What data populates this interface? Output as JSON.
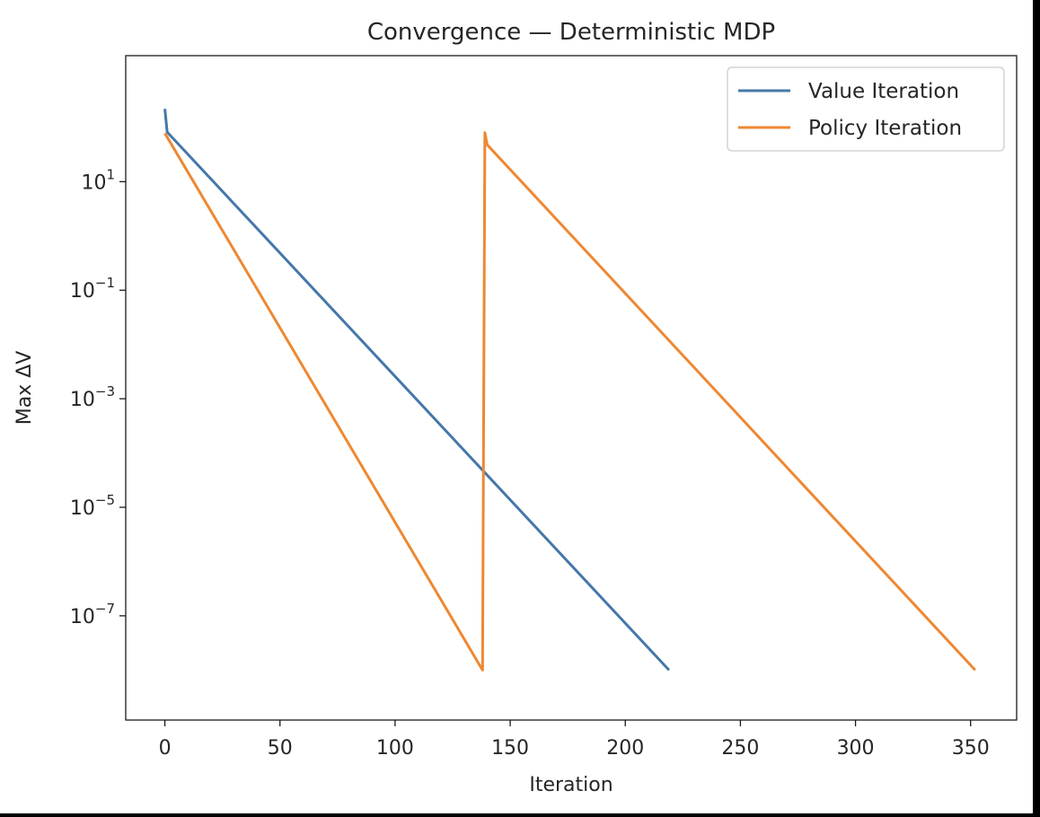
{
  "chart_data": {
    "type": "line",
    "title": "Convergence — Deterministic MDP",
    "xlabel": "Iteration",
    "ylabel": "Max ΔV",
    "xlim": [
      -17,
      370
    ],
    "ylim": [
      1.2e-09,
      2100.0
    ],
    "yscale": "log",
    "grid": false,
    "legend_position": "top-right",
    "x_ticks": [
      0,
      50,
      100,
      150,
      200,
      250,
      300,
      350
    ],
    "y_ticks": [
      {
        "value": 10,
        "base": "10",
        "exp": "1"
      },
      {
        "value": 0.1,
        "base": "10",
        "exp": "−1"
      },
      {
        "value": 0.001,
        "base": "10",
        "exp": "−3"
      },
      {
        "value": 1e-05,
        "base": "10",
        "exp": "−5"
      },
      {
        "value": 1e-07,
        "base": "10",
        "exp": "−7"
      }
    ],
    "series": [
      {
        "name": "Value Iteration",
        "color": "#4477aa",
        "points": [
          [
            0,
            220
          ],
          [
            1,
            82
          ],
          [
            219,
            1e-08
          ]
        ]
      },
      {
        "name": "Policy Iteration",
        "color": "#ee8833",
        "points": [
          [
            0,
            78
          ],
          [
            138,
            1e-08
          ],
          [
            139,
            80
          ],
          [
            140,
            48
          ],
          [
            352,
            1e-08
          ]
        ]
      }
    ]
  }
}
